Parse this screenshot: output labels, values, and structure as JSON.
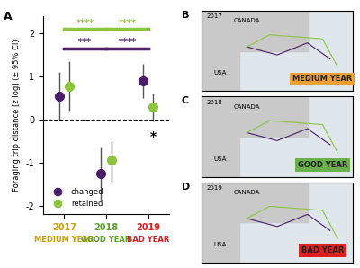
{
  "chart_data": {
    "type": "errorbar",
    "panel": "A",
    "y_label": "Foraging trip distance [z log] (± 95% CI)",
    "categories": [
      "2017",
      "2018",
      "2019"
    ],
    "category_notes": [
      "MEDIUM YEAR",
      "GOOD YEAR",
      "BAD YEAR"
    ],
    "category_colors": [
      "#c8a000",
      "#5aa02c",
      "#d62020"
    ],
    "series": [
      {
        "name": "changed",
        "color": "#4b1d6b",
        "marker": "o",
        "values": [
          0.55,
          -1.25,
          0.9
        ],
        "ci_low": [
          0.0,
          -1.85,
          0.5
        ],
        "ci_high": [
          1.1,
          -0.65,
          1.3
        ]
      },
      {
        "name": "retained",
        "color": "#8cc63f",
        "marker": "o",
        "values": [
          0.78,
          -0.95,
          0.3
        ],
        "ci_low": [
          0.2,
          -1.45,
          -0.05
        ],
        "ci_high": [
          1.35,
          -0.5,
          0.6
        ]
      }
    ],
    "significance": [
      {
        "from": 0,
        "to": 1,
        "y": 2.1,
        "label": "****",
        "color": "#8cc63f"
      },
      {
        "from": 1,
        "to": 2,
        "y": 2.1,
        "label": "****",
        "color": "#8cc63f"
      },
      {
        "from": 0,
        "to": 1,
        "y": 1.65,
        "label": "***",
        "color": "#4b1d6b"
      },
      {
        "from": 1,
        "to": 2,
        "y": 1.65,
        "label": "****",
        "color": "#4b1d6b"
      }
    ],
    "marks": [
      {
        "label": "*",
        "category": 2,
        "series": "retained",
        "y": -0.25
      }
    ],
    "ylim": [
      -2.2,
      2.4
    ],
    "yticks": [
      -2,
      -1,
      0,
      1,
      2
    ],
    "reference_line": 0,
    "legend": "lower left"
  },
  "maps": [
    {
      "panel": "B",
      "year": "2017",
      "label": "MEDIUM YEAR",
      "color": "#f0a030",
      "places": [
        "CANADA",
        "USA"
      ]
    },
    {
      "panel": "C",
      "year": "2018",
      "label": "GOOD YEAR",
      "color": "#6ab04c",
      "places": [
        "CANADA",
        "USA"
      ]
    },
    {
      "panel": "D",
      "year": "2019",
      "label": "BAD YEAR",
      "color": "#e02020",
      "places": [
        "CANADA",
        "USA"
      ]
    }
  ]
}
